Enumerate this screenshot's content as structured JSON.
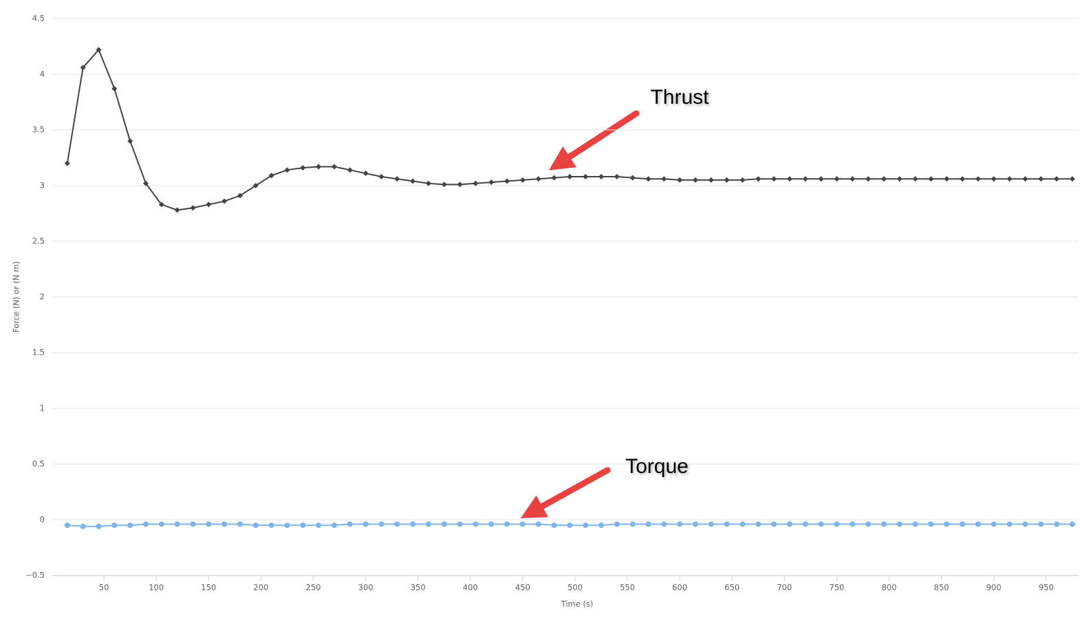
{
  "chart_data": {
    "type": "line",
    "x_label": "Time (s)",
    "y_label": "Force (N) or (N m)",
    "x": [
      15,
      30,
      45,
      60,
      75,
      90,
      105,
      120,
      135,
      150,
      165,
      180,
      195,
      210,
      225,
      240,
      255,
      270,
      285,
      300,
      315,
      330,
      345,
      360,
      375,
      390,
      405,
      420,
      435,
      450,
      465,
      480,
      495,
      510,
      525,
      540,
      555,
      570,
      585,
      600,
      615,
      630,
      645,
      660,
      675,
      690,
      705,
      720,
      735,
      750,
      765,
      780,
      795,
      810,
      825,
      840,
      855,
      870,
      885,
      900,
      915,
      930,
      945,
      960,
      975
    ],
    "series": [
      {
        "name": "Thrust",
        "color": "#434348",
        "marker": "diamond",
        "values": [
          3.2,
          4.06,
          4.22,
          3.87,
          3.4,
          3.02,
          2.83,
          2.78,
          2.8,
          2.83,
          2.86,
          2.91,
          3.0,
          3.09,
          3.14,
          3.16,
          3.17,
          3.17,
          3.14,
          3.11,
          3.08,
          3.06,
          3.04,
          3.02,
          3.01,
          3.01,
          3.02,
          3.03,
          3.04,
          3.05,
          3.06,
          3.07,
          3.08,
          3.08,
          3.08,
          3.08,
          3.07,
          3.06,
          3.06,
          3.05,
          3.05,
          3.05,
          3.05,
          3.05,
          3.06,
          3.06,
          3.06,
          3.06,
          3.06,
          3.06,
          3.06,
          3.06,
          3.06,
          3.06,
          3.06,
          3.06,
          3.06,
          3.06,
          3.06,
          3.06,
          3.06,
          3.06,
          3.06,
          3.06,
          3.06
        ]
      },
      {
        "name": "Torque",
        "color": "#7cb5ec",
        "marker": "circle",
        "values": [
          -0.05,
          -0.06,
          -0.06,
          -0.05,
          -0.05,
          -0.04,
          -0.04,
          -0.04,
          -0.04,
          -0.04,
          -0.04,
          -0.04,
          -0.05,
          -0.05,
          -0.05,
          -0.05,
          -0.05,
          -0.05,
          -0.04,
          -0.04,
          -0.04,
          -0.04,
          -0.04,
          -0.04,
          -0.04,
          -0.04,
          -0.04,
          -0.04,
          -0.04,
          -0.04,
          -0.04,
          -0.05,
          -0.05,
          -0.05,
          -0.05,
          -0.04,
          -0.04,
          -0.04,
          -0.04,
          -0.04,
          -0.04,
          -0.04,
          -0.04,
          -0.04,
          -0.04,
          -0.04,
          -0.04,
          -0.04,
          -0.04,
          -0.04,
          -0.04,
          -0.04,
          -0.04,
          -0.04,
          -0.04,
          -0.04,
          -0.04,
          -0.04,
          -0.04,
          -0.04,
          -0.04,
          -0.04,
          -0.04,
          -0.04,
          -0.04
        ]
      }
    ],
    "annotations": [
      {
        "text": "Thrust"
      },
      {
        "text": "Torque"
      }
    ],
    "xlim": [
      0,
      981
    ],
    "ylim": [
      -0.5,
      4.5
    ],
    "xticks": [
      50,
      100,
      150,
      200,
      250,
      300,
      350,
      400,
      450,
      500,
      550,
      600,
      650,
      700,
      750,
      800,
      850,
      900,
      950
    ],
    "yticks": [
      {
        "value": -0.5,
        "label": "−0.5"
      },
      0,
      0.5,
      1,
      1.5,
      2,
      2.5,
      3,
      3.5,
      4,
      4.5
    ],
    "grid": true
  }
}
